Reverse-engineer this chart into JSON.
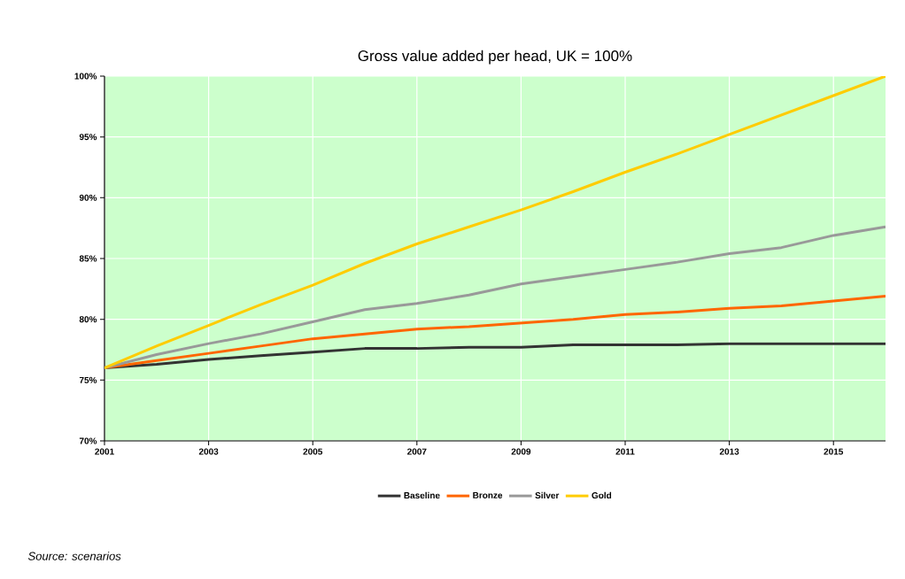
{
  "chart_data": {
    "type": "line",
    "title": "Gross value added per head, UK = 100%",
    "x": [
      2001,
      2002,
      2003,
      2004,
      2005,
      2006,
      2007,
      2008,
      2009,
      2010,
      2011,
      2012,
      2013,
      2014,
      2015,
      2016
    ],
    "series": [
      {
        "name": "Baseline",
        "color": "#333333",
        "values": [
          76,
          76.3,
          76.7,
          77.0,
          77.3,
          77.6,
          77.6,
          77.7,
          77.7,
          77.9,
          77.9,
          77.9,
          78.0,
          78.0,
          78.0,
          78.0
        ]
      },
      {
        "name": "Bronze",
        "color": "#ff6600",
        "values": [
          76,
          76.6,
          77.2,
          77.8,
          78.4,
          78.8,
          79.2,
          79.4,
          79.7,
          80.0,
          80.4,
          80.6,
          80.9,
          81.1,
          81.5,
          81.9
        ]
      },
      {
        "name": "Silver",
        "color": "#999999",
        "values": [
          76,
          77.1,
          78.0,
          78.8,
          79.8,
          80.8,
          81.3,
          82.0,
          82.9,
          83.5,
          84.1,
          84.7,
          85.4,
          85.9,
          86.9,
          87.6
        ]
      },
      {
        "name": "Gold",
        "color": "#ffcc00",
        "values": [
          76,
          77.8,
          79.5,
          81.2,
          82.8,
          84.6,
          86.2,
          87.6,
          89.0,
          90.5,
          92.1,
          93.6,
          95.2,
          96.8,
          98.4,
          100
        ]
      }
    ],
    "xlim": [
      2001,
      2016
    ],
    "xticks": [
      2001,
      2003,
      2005,
      2007,
      2009,
      2011,
      2013,
      2015
    ],
    "ylim": [
      70,
      100
    ],
    "yticks": [
      {
        "value": 70,
        "label": "70%"
      },
      {
        "value": 75,
        "label": "75%"
      },
      {
        "value": 80,
        "label": "80%"
      },
      {
        "value": 85,
        "label": "85%"
      },
      {
        "value": 90,
        "label": "90%"
      },
      {
        "value": 95,
        "label": "95%"
      },
      {
        "value": 100,
        "label": "100%"
      }
    ],
    "grid": true,
    "legend": "bottom",
    "marker": "none",
    "line_style": "solid",
    "annotations": [
      "Source: scenarios"
    ]
  }
}
